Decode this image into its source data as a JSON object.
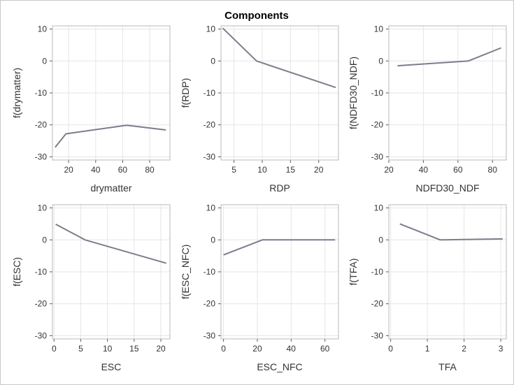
{
  "title": "Components",
  "line_color": "#7a7d8c",
  "chart_data": [
    {
      "type": "line",
      "xlabel": "drymatter",
      "ylabel": "f(drymatter)",
      "xticks": [
        20,
        40,
        60,
        80
      ],
      "xlim": [
        8,
        95
      ],
      "yticks": [
        10,
        0,
        -10,
        -20,
        -30
      ],
      "ylim": [
        -31,
        11
      ],
      "grid": true,
      "x": [
        10,
        18,
        63,
        92
      ],
      "y": [
        -27.0,
        -22.8,
        -20.1,
        -21.6
      ]
    },
    {
      "type": "line",
      "xlabel": "RDP",
      "ylabel": "f(RDP)",
      "xticks": [
        5,
        10,
        15,
        20
      ],
      "xlim": [
        2.7,
        23.5
      ],
      "yticks": [
        10,
        0,
        -10,
        -20,
        -30
      ],
      "ylim": [
        -31,
        11
      ],
      "grid": true,
      "x": [
        3,
        9,
        23
      ],
      "y": [
        10.3,
        0,
        -8.3
      ]
    },
    {
      "type": "line",
      "xlabel": "NDFD30_NDF",
      "ylabel": "f(NDFD30_NDF)",
      "xticks": [
        20,
        40,
        60,
        80
      ],
      "xlim": [
        20,
        88
      ],
      "yticks": [
        10,
        0,
        -10,
        -20,
        -30
      ],
      "ylim": [
        -31,
        11
      ],
      "grid": true,
      "x": [
        25,
        66,
        85
      ],
      "y": [
        -1.5,
        0,
        4.1
      ]
    },
    {
      "type": "line",
      "xlabel": "ESC",
      "ylabel": "f(ESC)",
      "xticks": [
        0,
        5,
        10,
        15,
        20
      ],
      "xlim": [
        -0.3,
        21.7
      ],
      "yticks": [
        10,
        0,
        -10,
        -20,
        -30
      ],
      "ylim": [
        -31,
        11
      ],
      "grid": true,
      "x": [
        0.3,
        5.8,
        21
      ],
      "y": [
        4.9,
        0,
        -7.3
      ]
    },
    {
      "type": "line",
      "xlabel": "ESC_NFC",
      "ylabel": "f(ESC_NFC)",
      "xticks": [
        0,
        20,
        40,
        60
      ],
      "xlim": [
        -1.5,
        68
      ],
      "yticks": [
        10,
        0,
        -10,
        -20,
        -30
      ],
      "ylim": [
        -31,
        11
      ],
      "grid": true,
      "x": [
        0,
        23,
        66
      ],
      "y": [
        -4.7,
        0,
        0
      ]
    },
    {
      "type": "line",
      "xlabel": "TFA",
      "ylabel": "f(TFA)",
      "xticks": [
        0,
        1,
        2,
        3
      ],
      "xlim": [
        -0.05,
        3.15
      ],
      "yticks": [
        10,
        0,
        -10,
        -20,
        -30
      ],
      "ylim": [
        -31,
        11
      ],
      "grid": true,
      "x": [
        0.25,
        1.35,
        3.05
      ],
      "y": [
        5.0,
        0,
        0.3
      ]
    }
  ]
}
